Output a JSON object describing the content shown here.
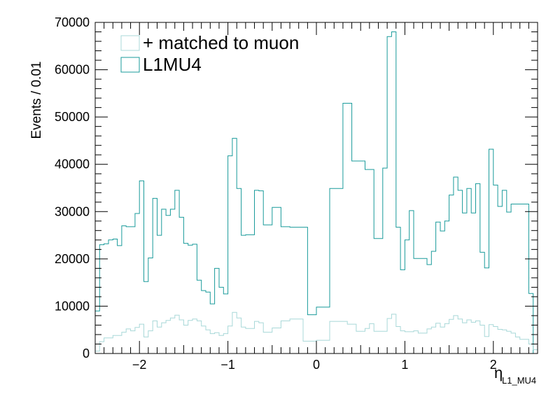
{
  "chart_data": {
    "type": "histogram",
    "x_axis": {
      "label_main": "η",
      "label_sub": "L1_MU4",
      "range": [
        -2.5,
        2.5
      ],
      "ticks": [
        -2,
        -1,
        0,
        1,
        2
      ],
      "tick_labels": [
        "−2",
        "−1",
        "0",
        "1",
        "2"
      ]
    },
    "y_axis": {
      "label": "Events / 0.01",
      "range": [
        0,
        70000
      ],
      "ticks": [
        0,
        10000,
        20000,
        30000,
        40000,
        50000,
        60000,
        70000
      ],
      "tick_labels": [
        "0",
        "10000",
        "20000",
        "30000",
        "40000",
        "50000",
        "60000",
        "70000"
      ]
    },
    "legend": {
      "placement": "top-left",
      "entries": [
        {
          "label": "+ matched to muon",
          "color": "#a8d8d8"
        },
        {
          "label": "L1MU4",
          "color": "#1a9b9b"
        }
      ]
    },
    "series": [
      {
        "name": "L1MU4",
        "color": "#1a9b9b",
        "bins": [
          [
            -2.5,
            -2.45,
            9000
          ],
          [
            -2.45,
            -2.4,
            23000
          ],
          [
            -2.4,
            -2.35,
            23200
          ],
          [
            -2.35,
            -2.3,
            24000
          ],
          [
            -2.3,
            -2.25,
            24200
          ],
          [
            -2.25,
            -2.2,
            22800
          ],
          [
            -2.2,
            -2.15,
            27000
          ],
          [
            -2.15,
            -2.05,
            26800
          ],
          [
            -2.05,
            -2.0,
            29600
          ],
          [
            -2.0,
            -1.95,
            36500
          ],
          [
            -1.95,
            -1.9,
            15200
          ],
          [
            -1.9,
            -1.85,
            20200
          ],
          [
            -1.85,
            -1.8,
            32800
          ],
          [
            -1.8,
            -1.75,
            25000
          ],
          [
            -1.75,
            -1.7,
            30500
          ],
          [
            -1.7,
            -1.65,
            29200
          ],
          [
            -1.65,
            -1.6,
            30500
          ],
          [
            -1.6,
            -1.55,
            34500
          ],
          [
            -1.55,
            -1.5,
            28800
          ],
          [
            -1.5,
            -1.45,
            23300
          ],
          [
            -1.45,
            -1.4,
            22900
          ],
          [
            -1.4,
            -1.35,
            23100
          ],
          [
            -1.35,
            -1.3,
            15500
          ],
          [
            -1.3,
            -1.25,
            13300
          ],
          [
            -1.25,
            -1.2,
            13000
          ],
          [
            -1.2,
            -1.15,
            10500
          ],
          [
            -1.15,
            -1.1,
            18000
          ],
          [
            -1.1,
            -1.05,
            14000
          ],
          [
            -1.05,
            -1.0,
            12600
          ],
          [
            -1.0,
            -0.95,
            41800
          ],
          [
            -0.95,
            -0.9,
            45500
          ],
          [
            -0.9,
            -0.85,
            34900
          ],
          [
            -0.85,
            -0.8,
            25000
          ],
          [
            -0.8,
            -0.7,
            25100
          ],
          [
            -0.7,
            -0.65,
            34500
          ],
          [
            -0.65,
            -0.6,
            34400
          ],
          [
            -0.6,
            -0.5,
            27200
          ],
          [
            -0.5,
            -0.4,
            30900
          ],
          [
            -0.4,
            -0.3,
            26800
          ],
          [
            -0.3,
            -0.2,
            26700
          ],
          [
            -0.2,
            -0.1,
            26700
          ],
          [
            -0.1,
            -0.05,
            8200
          ],
          [
            -0.05,
            0.0,
            8200
          ],
          [
            0.0,
            0.1,
            9800
          ],
          [
            0.1,
            0.15,
            9800
          ],
          [
            0.15,
            0.25,
            34900
          ],
          [
            0.25,
            0.3,
            34900
          ],
          [
            0.3,
            0.4,
            52900
          ],
          [
            0.4,
            0.5,
            40700
          ],
          [
            0.5,
            0.55,
            40700
          ],
          [
            0.55,
            0.65,
            38900
          ],
          [
            0.65,
            0.75,
            24300
          ],
          [
            0.75,
            0.8,
            39200
          ],
          [
            0.8,
            0.85,
            67000
          ],
          [
            0.85,
            0.9,
            68000
          ],
          [
            0.9,
            0.95,
            26700
          ],
          [
            0.95,
            1.0,
            17700
          ],
          [
            1.0,
            1.05,
            24000
          ],
          [
            1.05,
            1.1,
            30200
          ],
          [
            1.1,
            1.15,
            20100
          ],
          [
            1.15,
            1.2,
            20100
          ],
          [
            1.2,
            1.25,
            20100
          ],
          [
            1.25,
            1.3,
            18800
          ],
          [
            1.3,
            1.35,
            21600
          ],
          [
            1.35,
            1.4,
            27800
          ],
          [
            1.4,
            1.45,
            25900
          ],
          [
            1.45,
            1.5,
            28000
          ],
          [
            1.5,
            1.55,
            33500
          ],
          [
            1.55,
            1.6,
            37300
          ],
          [
            1.6,
            1.65,
            34500
          ],
          [
            1.65,
            1.7,
            29700
          ],
          [
            1.7,
            1.75,
            34900
          ],
          [
            1.75,
            1.8,
            29700
          ],
          [
            1.8,
            1.85,
            35900
          ],
          [
            1.85,
            1.9,
            21400
          ],
          [
            1.9,
            1.95,
            18100
          ],
          [
            1.95,
            2.0,
            43200
          ],
          [
            2.0,
            2.05,
            35600
          ],
          [
            2.05,
            2.1,
            31100
          ],
          [
            2.1,
            2.15,
            34500
          ],
          [
            2.15,
            2.2,
            29900
          ],
          [
            2.2,
            2.25,
            31600
          ],
          [
            2.25,
            2.4,
            31600
          ],
          [
            2.4,
            2.45,
            12700
          ],
          [
            2.45,
            2.5,
            0
          ]
        ]
      },
      {
        "name": "+ matched to muon",
        "color": "#a8d8d8",
        "bins": [
          [
            -2.5,
            -2.45,
            500
          ],
          [
            -2.45,
            -2.4,
            2500
          ],
          [
            -2.4,
            -2.3,
            3300
          ],
          [
            -2.3,
            -2.2,
            3800
          ],
          [
            -2.2,
            -2.15,
            4500
          ],
          [
            -2.15,
            -2.1,
            5200
          ],
          [
            -2.1,
            -2.05,
            4800
          ],
          [
            -2.05,
            -2.0,
            5500
          ],
          [
            -2.0,
            -1.95,
            6200
          ],
          [
            -1.95,
            -1.9,
            3500
          ],
          [
            -1.9,
            -1.85,
            4800
          ],
          [
            -1.85,
            -1.8,
            6900
          ],
          [
            -1.8,
            -1.75,
            5600
          ],
          [
            -1.75,
            -1.7,
            6500
          ],
          [
            -1.7,
            -1.65,
            7000
          ],
          [
            -1.65,
            -1.6,
            7500
          ],
          [
            -1.6,
            -1.55,
            8100
          ],
          [
            -1.55,
            -1.5,
            7100
          ],
          [
            -1.5,
            -1.45,
            6000
          ],
          [
            -1.45,
            -1.4,
            7000
          ],
          [
            -1.4,
            -1.35,
            7300
          ],
          [
            -1.35,
            -1.3,
            6900
          ],
          [
            -1.3,
            -1.25,
            5800
          ],
          [
            -1.25,
            -1.2,
            5000
          ],
          [
            -1.2,
            -1.15,
            4200
          ],
          [
            -1.15,
            -1.1,
            4400
          ],
          [
            -1.1,
            -1.05,
            3800
          ],
          [
            -1.05,
            -1.0,
            4200
          ],
          [
            -1.0,
            -0.95,
            5800
          ],
          [
            -0.95,
            -0.9,
            8700
          ],
          [
            -0.9,
            -0.85,
            7500
          ],
          [
            -0.85,
            -0.8,
            5600
          ],
          [
            -0.8,
            -0.7,
            5300
          ],
          [
            -0.7,
            -0.65,
            6800
          ],
          [
            -0.65,
            -0.6,
            6500
          ],
          [
            -0.6,
            -0.5,
            4500
          ],
          [
            -0.5,
            -0.4,
            5400
          ],
          [
            -0.4,
            -0.3,
            6900
          ],
          [
            -0.3,
            -0.15,
            7300
          ],
          [
            -0.15,
            0.0,
            2600
          ],
          [
            0.0,
            0.15,
            2800
          ],
          [
            0.15,
            0.35,
            6800
          ],
          [
            0.35,
            0.45,
            6200
          ],
          [
            0.45,
            0.55,
            4700
          ],
          [
            0.55,
            0.6,
            5300
          ],
          [
            0.6,
            0.65,
            6300
          ],
          [
            0.65,
            0.8,
            4700
          ],
          [
            0.8,
            0.85,
            7400
          ],
          [
            0.85,
            0.9,
            8300
          ],
          [
            0.9,
            0.95,
            5700
          ],
          [
            0.95,
            1.0,
            4800
          ],
          [
            1.0,
            1.1,
            4600
          ],
          [
            1.1,
            1.15,
            4800
          ],
          [
            1.15,
            1.25,
            4300
          ],
          [
            1.25,
            1.3,
            5200
          ],
          [
            1.3,
            1.35,
            5600
          ],
          [
            1.35,
            1.4,
            6400
          ],
          [
            1.4,
            1.45,
            5600
          ],
          [
            1.45,
            1.5,
            6300
          ],
          [
            1.5,
            1.55,
            7200
          ],
          [
            1.55,
            1.6,
            8000
          ],
          [
            1.6,
            1.65,
            7300
          ],
          [
            1.65,
            1.7,
            6500
          ],
          [
            1.7,
            1.75,
            7100
          ],
          [
            1.75,
            1.8,
            6600
          ],
          [
            1.8,
            1.85,
            6900
          ],
          [
            1.85,
            1.9,
            6000
          ],
          [
            1.9,
            1.95,
            3600
          ],
          [
            1.95,
            2.0,
            6100
          ],
          [
            2.0,
            2.05,
            5700
          ],
          [
            2.05,
            2.1,
            5100
          ],
          [
            2.1,
            2.15,
            5000
          ],
          [
            2.15,
            2.2,
            4700
          ],
          [
            2.2,
            2.25,
            4300
          ],
          [
            2.25,
            2.3,
            3500
          ],
          [
            2.3,
            2.4,
            3000
          ],
          [
            2.4,
            2.45,
            2000
          ],
          [
            2.45,
            2.5,
            800
          ]
        ]
      }
    ]
  }
}
